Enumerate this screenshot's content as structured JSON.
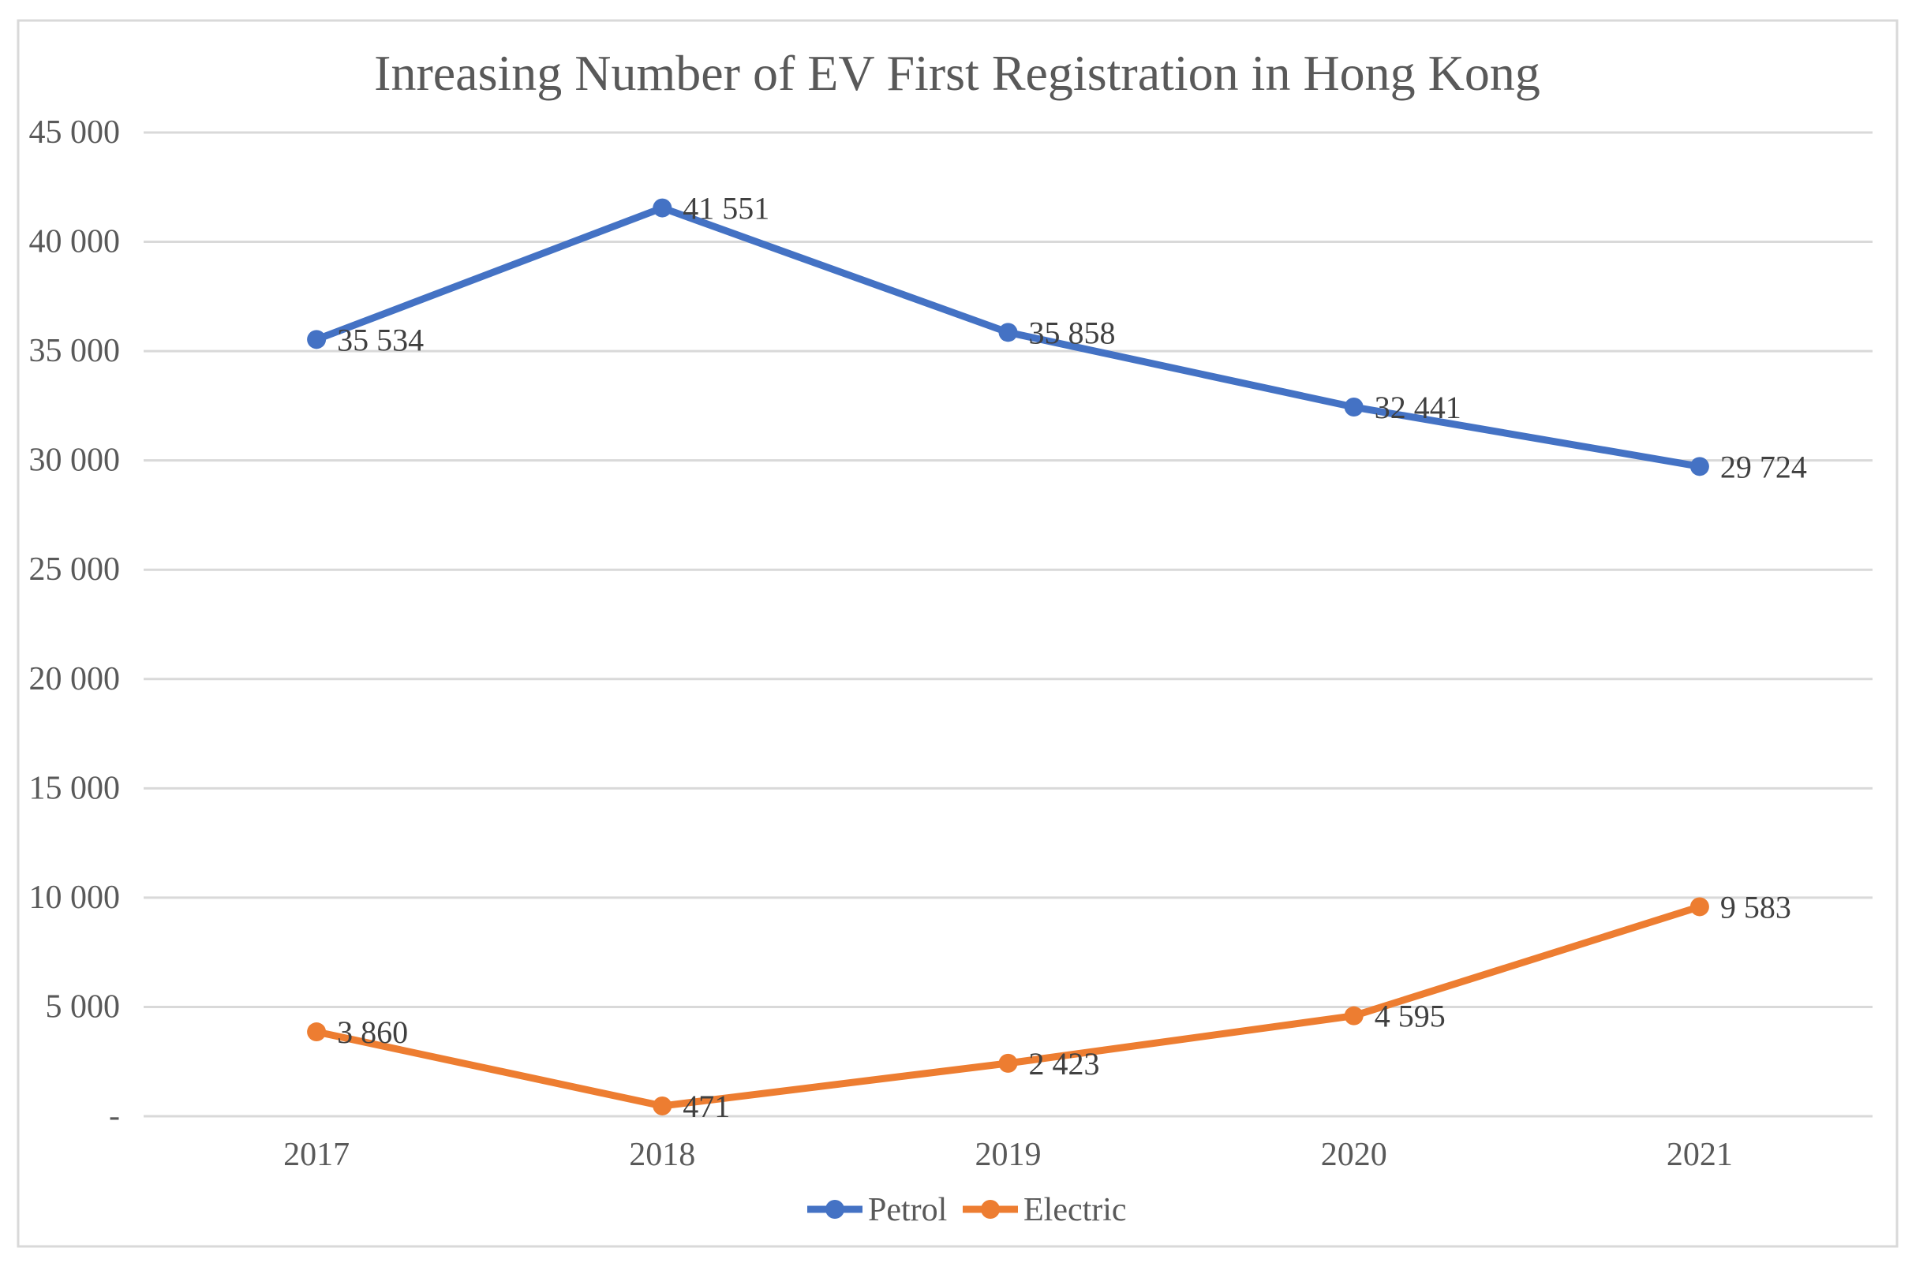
{
  "chart_data": {
    "type": "line",
    "title": "Inreasing Number of EV First Registration in Hong Kong",
    "categories": [
      "2017",
      "2018",
      "2019",
      "2020",
      "2021"
    ],
    "series": [
      {
        "name": "Petrol",
        "color": "#4472C4",
        "values": [
          35534,
          41551,
          35858,
          32441,
          29724
        ],
        "labels": [
          "35 534",
          "41 551",
          "35 858",
          "32 441",
          "29 724"
        ]
      },
      {
        "name": "Electric",
        "color": "#ED7D31",
        "values": [
          3860,
          471,
          2423,
          4595,
          9583
        ],
        "labels": [
          "3 860",
          "471",
          "2 423",
          "4 595",
          "9 583"
        ]
      }
    ],
    "y_axis": {
      "min": 0,
      "max": 45000,
      "step": 5000,
      "tick_labels": [
        "-",
        "5 000",
        "10 000",
        "15 000",
        "20 000",
        "25 000",
        "30 000",
        "35 000",
        "40 000",
        "45 000"
      ]
    },
    "x_axis": {
      "tick_labels": [
        "2017",
        "2018",
        "2019",
        "2020",
        "2021"
      ]
    },
    "grid": true,
    "legend_position": "bottom",
    "legend_labels": [
      "Petrol",
      "Electric"
    ],
    "colors": {
      "gridline": "#D9D9D9",
      "frame_border": "#D9D9D9",
      "axis_text": "#595959",
      "title_text": "#595959",
      "data_label_text": "#404040",
      "background": "#FFFFFF"
    }
  }
}
